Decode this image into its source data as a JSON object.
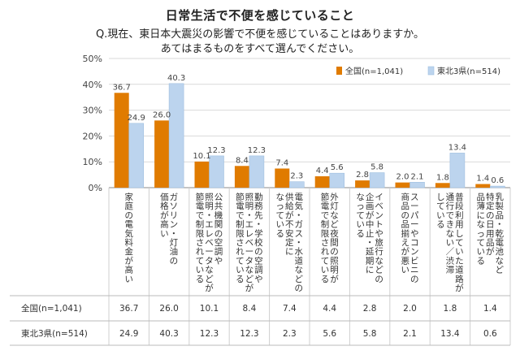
{
  "title": "日常生活で不便を感じていること",
  "question_line1": "Q.現在、東日本大震災の影響で不便を感じていることはありますか。",
  "question_line2": "あてはまるものをすべて選んでください。",
  "colors": {
    "zenkoku": "#E07B00",
    "tohoku": "#BCD4EE",
    "tohoku_stroke": "#9FBFE0",
    "grid": "#D9D9D9"
  },
  "chart_data": {
    "type": "bar",
    "ylim": [
      0,
      50
    ],
    "yticks": [
      "0%",
      "10%",
      "20%",
      "30%",
      "40%",
      "50%"
    ],
    "legend_position": "top-right",
    "categories": [
      "家庭の電気料金が高い",
      "ガソリン・灯油の価格が高い",
      "公共機関の空調や照明・エレベータなどが節電で制限されている",
      "勤務先・学校の空調や照明・エレベータなどが節電で制限されている",
      "電気・ガス・水道などの供給が不安定になっている",
      "外灯など夜間の照明が節電で制限されている",
      "イベントや旅行などの企画が中止・延期になっている",
      "スーパーやコンビニの商品の品揃えが悪い",
      "普段利用していた道路が通行できない／渋滞している",
      "乳製品・乾電池など特定の日用品が品薄になっている"
    ],
    "category_lines": [
      [
        "家庭の電気料金が高い"
      ],
      [
        "ガソリン・灯油の",
        "価格が高い"
      ],
      [
        "公共機関の空調や",
        "照明・エレベータなどが",
        "節電で制限されている"
      ],
      [
        "勤務先・学校の空調や",
        "照明・エレベータなどが",
        "節電で制限されている"
      ],
      [
        "電気・ガス・水道などの",
        "供給が不安定に",
        "なっている"
      ],
      [
        "外灯など夜間の照明が",
        "節電で制限されている"
      ],
      [
        "イベントや旅行などの",
        "企画が中止・延期に",
        "なっている"
      ],
      [
        "スーパーやコンビニの",
        "商品の品揃えが悪い"
      ],
      [
        "普段利用していた道路が",
        "通行できない／渋滞",
        "している"
      ],
      [
        "乳製品・乾電池など",
        "特定の日用品が",
        "品薄になっている"
      ]
    ],
    "series": [
      {
        "name": "全国(n=1,041)",
        "values": [
          36.7,
          26.0,
          10.1,
          8.4,
          7.4,
          4.4,
          2.8,
          2.0,
          1.8,
          1.4
        ]
      },
      {
        "name": "東北3県(n=514)",
        "values": [
          24.9,
          40.3,
          12.3,
          12.3,
          2.3,
          5.6,
          5.8,
          2.1,
          13.4,
          0.6
        ]
      }
    ]
  }
}
